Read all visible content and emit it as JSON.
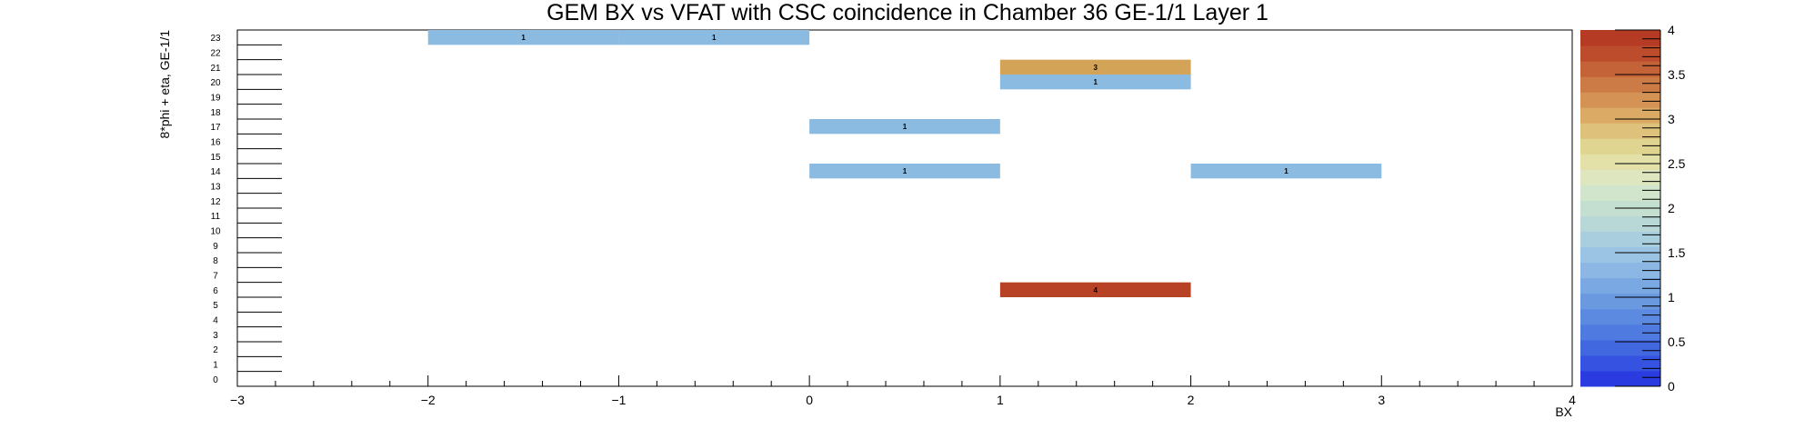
{
  "chart_data": {
    "type": "heatmap",
    "title": "GEM BX vs VFAT with CSC coincidence in Chamber 36 GE-1/1 Layer 1",
    "xlabel": "BX",
    "ylabel": "8*phi + eta, GE-1/1",
    "xlim": [
      -3,
      4
    ],
    "ylim": [
      0,
      23
    ],
    "zlim": [
      0,
      4
    ],
    "x_ticks": [
      "−3",
      "−2",
      "−1",
      "0",
      "1",
      "2",
      "3",
      "4"
    ],
    "x_tick_values": [
      -3,
      -2,
      -1,
      0,
      1,
      2,
      3,
      4
    ],
    "y_ticks": [
      "0",
      "1",
      "2",
      "3",
      "4",
      "5",
      "6",
      "7",
      "8",
      "9",
      "10",
      "11",
      "12",
      "13",
      "14",
      "15",
      "16",
      "17",
      "18",
      "19",
      "20",
      "21",
      "22",
      "23"
    ],
    "z_ticks": [
      "0",
      "0.5",
      "1",
      "1.5",
      "2",
      "2.5",
      "3",
      "3.5",
      "4"
    ],
    "z_tick_values": [
      0,
      0.5,
      1,
      1.5,
      2,
      2.5,
      3,
      3.5,
      4
    ],
    "cells": [
      {
        "x0": -2,
        "x1": -1,
        "y": 23,
        "value": 1,
        "label": "1"
      },
      {
        "x0": -1,
        "x1": 0,
        "y": 23,
        "value": 1,
        "label": "1"
      },
      {
        "x0": 1,
        "x1": 2,
        "y": 21,
        "value": 3,
        "label": "3"
      },
      {
        "x0": 1,
        "x1": 2,
        "y": 20,
        "value": 1,
        "label": "1"
      },
      {
        "x0": 0,
        "x1": 1,
        "y": 17,
        "value": 1,
        "label": "1"
      },
      {
        "x0": 0,
        "x1": 1,
        "y": 14,
        "value": 1,
        "label": "1"
      },
      {
        "x0": 2,
        "x1": 3,
        "y": 14,
        "value": 1,
        "label": "1"
      },
      {
        "x0": 1,
        "x1": 2,
        "y": 6,
        "value": 4,
        "label": "4"
      }
    ],
    "colors": {
      "value_1": "#8cbbe2",
      "value_3": "#d3a458",
      "value_4": "#b84226"
    },
    "palette": [
      "#2a3ce0",
      "#3553e0",
      "#4268e0",
      "#4f7ae0",
      "#5c8ae0",
      "#6a99e0",
      "#7aa8e2",
      "#8cb6e4",
      "#9bc3e3",
      "#a9cede",
      "#b7d8d7",
      "#c4dfd0",
      "#d1e5cc",
      "#dde6bf",
      "#e3e0a8",
      "#e0d491",
      "#dec27c",
      "#dbab66",
      "#d49355",
      "#cc7a46",
      "#c46238",
      "#bd4c2c",
      "#b63b24"
    ],
    "grid": false,
    "legend": "color-scale-right"
  }
}
